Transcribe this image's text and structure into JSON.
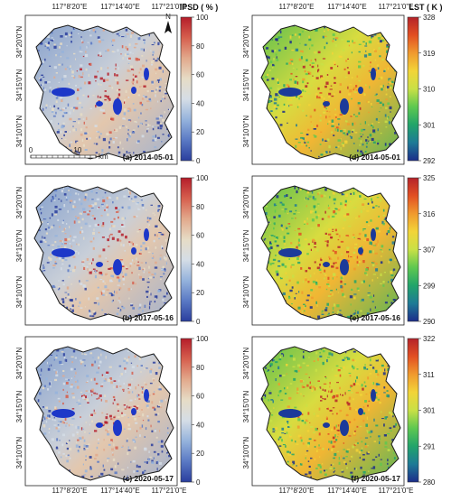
{
  "coords": {
    "top": [
      "117°8'20\"E",
      "117°14'40\"E",
      "117°21'0\"E"
    ],
    "bottom": [
      "117°8'20\"E",
      "117°14'40\"E",
      "117°21'0\"E"
    ],
    "left": [
      "34°20'0\"N",
      "34°15'0\"N",
      "34°10'0\"N"
    ]
  },
  "scalebar": {
    "ticks": [
      "0",
      "10"
    ],
    "unit": "km"
  },
  "north": "N",
  "colors": {
    "ipsd": [
      "#2a3e9e",
      "#5a79c4",
      "#95b3dc",
      "#d5dde6",
      "#e6dcc6",
      "#e2a98c",
      "#d65f4e",
      "#b51d2a"
    ],
    "lst": [
      "#1c2d8a",
      "#1e7a96",
      "#22a46a",
      "#5ec850",
      "#c9e046",
      "#f2d438",
      "#f09a2e",
      "#e24f22",
      "#b5232a"
    ]
  },
  "panels": [
    {
      "id": "a",
      "label": "(a) 2014-05-01",
      "kind": "ipsd",
      "title": "IPSD ( % )",
      "ticks": [
        "100",
        "80",
        "60",
        "40",
        "20",
        "0"
      ]
    },
    {
      "id": "b",
      "label": "(b) 2017-05-16",
      "kind": "ipsd",
      "title": "",
      "ticks": [
        "100",
        "80",
        "60",
        "40",
        "20",
        "0"
      ]
    },
    {
      "id": "c",
      "label": "(c) 2020-05-17",
      "kind": "ipsd",
      "title": "",
      "ticks": [
        "100",
        "80",
        "60",
        "40",
        "20",
        "0"
      ]
    },
    {
      "id": "d",
      "label": "(d) 2014-05-01",
      "kind": "lst",
      "title": "LST ( K )",
      "ticks": [
        "328",
        "319",
        "310",
        "301",
        "292"
      ]
    },
    {
      "id": "e",
      "label": "(e) 2017-05-16",
      "kind": "lst",
      "title": "",
      "ticks": [
        "325",
        "316",
        "307",
        "299",
        "290"
      ]
    },
    {
      "id": "f",
      "label": "(f) 2020-05-17",
      "kind": "lst",
      "title": "",
      "ticks": [
        "322",
        "311",
        "301",
        "291",
        "280"
      ]
    }
  ]
}
